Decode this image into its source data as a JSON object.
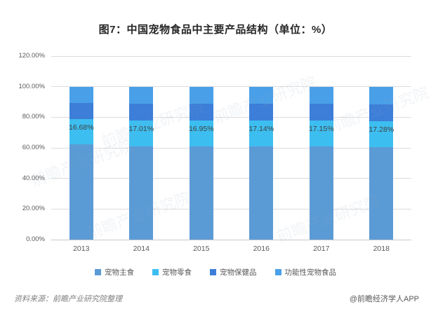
{
  "title": "图7：中国宠物食品中主要产品结构（单位：%）",
  "footer": {
    "source": "资料来源：前瞻产业研究院整理",
    "credit": "@前瞻经济学人APP"
  },
  "watermark_text": "前瞻产业研究院",
  "chart_data": {
    "type": "bar",
    "stacked": true,
    "title": "图7：中国宠物食品中主要产品结构（单位：%）",
    "categories": [
      "2013",
      "2014",
      "2015",
      "2016",
      "2017",
      "2018"
    ],
    "series": [
      {
        "name": "宠物主食",
        "color": "#5B9BD5",
        "values": [
          62.2,
          61.0,
          61.0,
          60.9,
          60.8,
          60.3
        ]
      },
      {
        "name": "宠物零食",
        "color": "#3DBEF0",
        "values": [
          16.68,
          17.01,
          16.95,
          17.14,
          17.15,
          17.28
        ],
        "labels": [
          "16.68%",
          "17.01%",
          "16.95%",
          "17.14%",
          "17.15%",
          "17.28%"
        ]
      },
      {
        "name": "宠物保健品",
        "color": "#3C7ED8",
        "values": [
          10.6,
          11.0,
          10.7,
          10.6,
          11.0,
          11.0
        ]
      },
      {
        "name": "功能性宠物食品",
        "color": "#4AA0E8",
        "values": [
          10.5,
          11.0,
          11.3,
          11.4,
          11.0,
          11.4
        ]
      }
    ],
    "xlabel": "",
    "ylabel": "",
    "ylim": [
      0,
      120
    ],
    "ytick_values": [
      0,
      20,
      40,
      60,
      80,
      100,
      120
    ],
    "ytick_labels": [
      "0.00%",
      "20.00%",
      "40.00%",
      "60.00%",
      "80.00%",
      "100.00%",
      "120.00%"
    ],
    "grid": true,
    "legend_position": "bottom",
    "data_labels_on_series": "宠物零食"
  }
}
